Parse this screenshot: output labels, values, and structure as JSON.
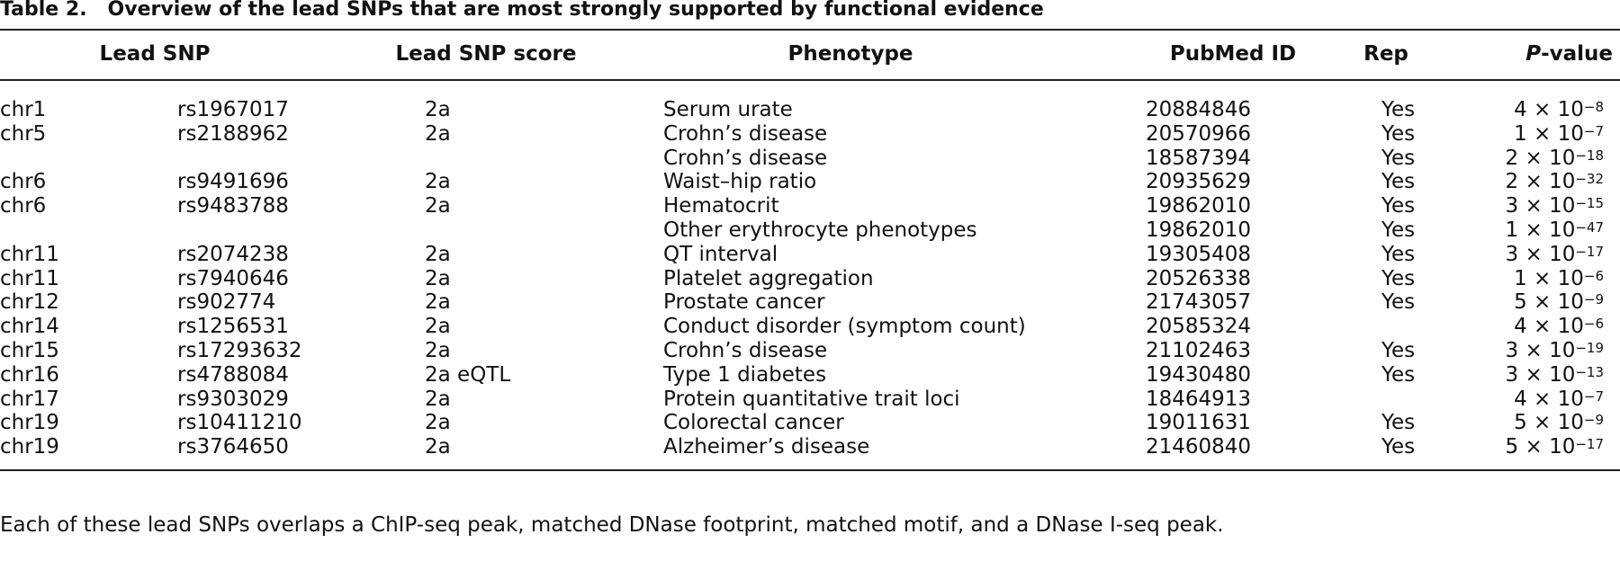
{
  "caption": {
    "label": "Table 2.",
    "text": "Overview of the lead SNPs that are most strongly supported by functional evidence"
  },
  "table": {
    "headers": [
      "Lead SNP",
      "Lead SNP score",
      "Phenotype",
      "PubMed ID",
      "Rep",
      {
        "italic": "P",
        "rest": "-value"
      }
    ],
    "rows": [
      [
        "chr1",
        "rs1967017",
        "2a",
        "Serum urate",
        "20884846",
        "Yes",
        {
          "mantissa": "4 × 10",
          "exponent": "−8"
        }
      ],
      [
        "chr5",
        "rs2188962",
        "2a",
        "Crohn’s disease",
        "20570966",
        "Yes",
        {
          "mantissa": "1 × 10",
          "exponent": "−7"
        }
      ],
      [
        null,
        null,
        null,
        "Crohn’s disease",
        "18587394",
        "Yes",
        {
          "mantissa": "2 × 10",
          "exponent": "−18"
        }
      ],
      [
        "chr6",
        "rs9491696",
        "2a",
        "Waist–hip ratio",
        "20935629",
        "Yes",
        {
          "mantissa": "2 × 10",
          "exponent": "−32"
        }
      ],
      [
        "chr6",
        "rs9483788",
        "2a",
        "Hematocrit",
        "19862010",
        "Yes",
        {
          "mantissa": "3 × 10",
          "exponent": "−15"
        }
      ],
      [
        null,
        null,
        null,
        "Other erythrocyte phenotypes",
        "19862010",
        "Yes",
        {
          "mantissa": "1 × 10",
          "exponent": "−47"
        }
      ],
      [
        "chr11",
        "rs2074238",
        "2a",
        "QT interval",
        "19305408",
        "Yes",
        {
          "mantissa": "3 × 10",
          "exponent": "−17"
        }
      ],
      [
        "chr11",
        "rs7940646",
        "2a",
        "Platelet aggregation",
        "20526338",
        "Yes",
        {
          "mantissa": "1 × 10",
          "exponent": "−6"
        }
      ],
      [
        "chr12",
        "rs902774",
        "2a",
        "Prostate cancer",
        "21743057",
        "Yes",
        {
          "mantissa": "5 × 10",
          "exponent": "−9"
        }
      ],
      [
        "chr14",
        "rs1256531",
        "2a",
        "Conduct disorder (symptom count)",
        "20585324",
        null,
        {
          "mantissa": "4 × 10",
          "exponent": "−6"
        }
      ],
      [
        "chr15",
        "rs17293632",
        "2a",
        "Crohn’s disease",
        "21102463",
        "Yes",
        {
          "mantissa": "3 × 10",
          "exponent": "−19"
        }
      ],
      [
        "chr16",
        "rs4788084",
        "2a eQTL",
        "Type 1 diabetes",
        "19430480",
        "Yes",
        {
          "mantissa": "3 × 10",
          "exponent": "−13"
        }
      ],
      [
        "chr17",
        "rs9303029",
        "2a",
        "Protein quantitative trait loci",
        "18464913",
        null,
        {
          "mantissa": "4 × 10",
          "exponent": "−7"
        }
      ],
      [
        "chr19",
        "rs10411210",
        "2a",
        "Colorectal cancer",
        "19011631",
        "Yes",
        {
          "mantissa": "5 × 10",
          "exponent": "−9"
        }
      ],
      [
        "chr19",
        "rs3764650",
        "2a",
        "Alzheimer’s disease",
        "21460840",
        "Yes",
        {
          "mantissa": "5 × 10",
          "exponent": "−17"
        }
      ]
    ]
  },
  "footnote": "Each of these lead SNPs overlaps a ChIP-seq peak, matched DNase footprint, matched motif, and a DNase I-seq peak."
}
